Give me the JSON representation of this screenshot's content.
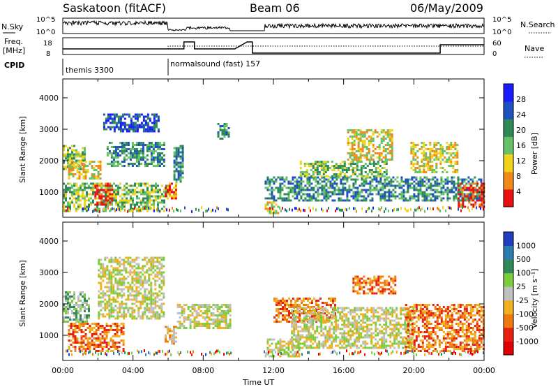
{
  "header": {
    "station": "Saskatoon (fitACF)",
    "beam": "Beam 06",
    "date": "06/May/2009"
  },
  "top_panels": {
    "nsky_label": "N.Sky",
    "nsky_ticks": [
      "10^5",
      "10^0"
    ],
    "nsearch_label": "N.Search",
    "nsearch_ticks": [
      "10^5",
      "10^0"
    ],
    "freq_label_1": "Freq.",
    "freq_label_2": "[MHz]",
    "freq_ticks": [
      "18",
      "8"
    ],
    "nave_label": "Nave",
    "nave_ticks": [
      "60",
      "0"
    ],
    "cpid_label": "CPID",
    "cpid_segments": [
      {
        "label": "themis 3300",
        "start_hour": 0
      },
      {
        "label": "normalsound (fast) 157",
        "start_hour": 6
      }
    ]
  },
  "chart_data": [
    {
      "type": "heatmap",
      "name": "power",
      "ylabel": "Slant Range [km]",
      "yticks": [
        "1000",
        "2000",
        "3000",
        "4000"
      ],
      "ylim": [
        200,
        4600
      ],
      "xlim": [
        0,
        24
      ],
      "colorbar_label": "Power [dB]",
      "colorbar_ticks": [
        "4",
        "8",
        "12",
        "16",
        "20",
        "24",
        "28"
      ],
      "colorbar_colors": [
        "#1a1aff",
        "#2050c0",
        "#2e8b57",
        "#66c266",
        "#f2d21a",
        "#f08a1a",
        "#e81010"
      ],
      "echo_regions": [
        {
          "t0": 0.0,
          "t1": 1.3,
          "r0": 1700,
          "r1": 2500,
          "level": 3
        },
        {
          "t0": 0.3,
          "t1": 2.2,
          "r0": 1400,
          "r1": 2000,
          "level": 4
        },
        {
          "t0": 0.0,
          "t1": 5.9,
          "r0": 400,
          "r1": 1300,
          "level": 3
        },
        {
          "t0": 1.8,
          "t1": 2.8,
          "r0": 600,
          "r1": 1300,
          "level": 6
        },
        {
          "t0": 2.3,
          "t1": 5.5,
          "r0": 2900,
          "r1": 3500,
          "level": 1
        },
        {
          "t0": 2.5,
          "t1": 5.8,
          "r0": 1800,
          "r1": 2600,
          "level": 2
        },
        {
          "t0": 5.8,
          "t1": 6.5,
          "r0": 800,
          "r1": 1300,
          "level": 5
        },
        {
          "t0": 6.3,
          "t1": 6.8,
          "r0": 1300,
          "r1": 2500,
          "level": 2
        },
        {
          "t0": 8.8,
          "t1": 9.5,
          "r0": 2700,
          "r1": 3200,
          "level": 2
        },
        {
          "t0": 11.5,
          "t1": 12.3,
          "r0": 300,
          "r1": 700,
          "level": 4
        },
        {
          "t0": 11.5,
          "t1": 24.0,
          "r0": 700,
          "r1": 1500,
          "level": 2
        },
        {
          "t0": 13.5,
          "t1": 18.5,
          "r0": 1500,
          "r1": 2000,
          "level": 3
        },
        {
          "t0": 16.2,
          "t1": 18.8,
          "r0": 2000,
          "r1": 3000,
          "level": 4
        },
        {
          "t0": 19.8,
          "t1": 22.5,
          "r0": 1600,
          "r1": 2600,
          "level": 4
        },
        {
          "t0": 22.5,
          "t1": 24.0,
          "r0": 500,
          "r1": 1300,
          "level": 6
        }
      ]
    },
    {
      "type": "heatmap",
      "name": "velocity",
      "ylabel": "Slant Range [km]",
      "yticks": [
        "1000",
        "2000",
        "3000",
        "4000"
      ],
      "ylim": [
        200,
        4600
      ],
      "xlim": [
        0,
        24
      ],
      "xlabel": "Time UT",
      "xticks": [
        "00:00",
        "04:00",
        "08:00",
        "12:00",
        "16:00",
        "20:00",
        "00:00"
      ],
      "colorbar_label": "Velocity [m s⁻¹]",
      "colorbar_ticks": [
        "1000",
        "500",
        "100",
        "25",
        "-25",
        "-100",
        "-500",
        "-1000"
      ],
      "colorbar_colors": [
        "#1f3fbf",
        "#2e7db0",
        "#2e8b57",
        "#7ccd3c",
        "#c0c0c0",
        "#f0b020",
        "#f07a10",
        "#e82010",
        "#e00000"
      ],
      "echo_regions": [
        {
          "t0": 0.0,
          "t1": 1.5,
          "r0": 1400,
          "r1": 2400,
          "level": 3
        },
        {
          "t0": 0.3,
          "t1": 3.5,
          "r0": 500,
          "r1": 1400,
          "level": 6
        },
        {
          "t0": 2.0,
          "t1": 5.8,
          "r0": 1500,
          "r1": 3500,
          "level": 4
        },
        {
          "t0": 5.8,
          "t1": 6.5,
          "r0": 700,
          "r1": 1300,
          "level": 5
        },
        {
          "t0": 6.5,
          "t1": 9.5,
          "r0": 1200,
          "r1": 2000,
          "level": 4
        },
        {
          "t0": 11.5,
          "t1": 13.5,
          "r0": 300,
          "r1": 900,
          "level": 4
        },
        {
          "t0": 12.0,
          "t1": 15.5,
          "r0": 1400,
          "r1": 2200,
          "level": 6
        },
        {
          "t0": 16.5,
          "t1": 19.0,
          "r0": 2300,
          "r1": 2900,
          "level": 6
        },
        {
          "t0": 13.0,
          "t1": 20.0,
          "r0": 600,
          "r1": 1900,
          "level": 4
        },
        {
          "t0": 19.5,
          "t1": 24.0,
          "r0": 500,
          "r1": 2000,
          "level": 6
        }
      ]
    }
  ]
}
